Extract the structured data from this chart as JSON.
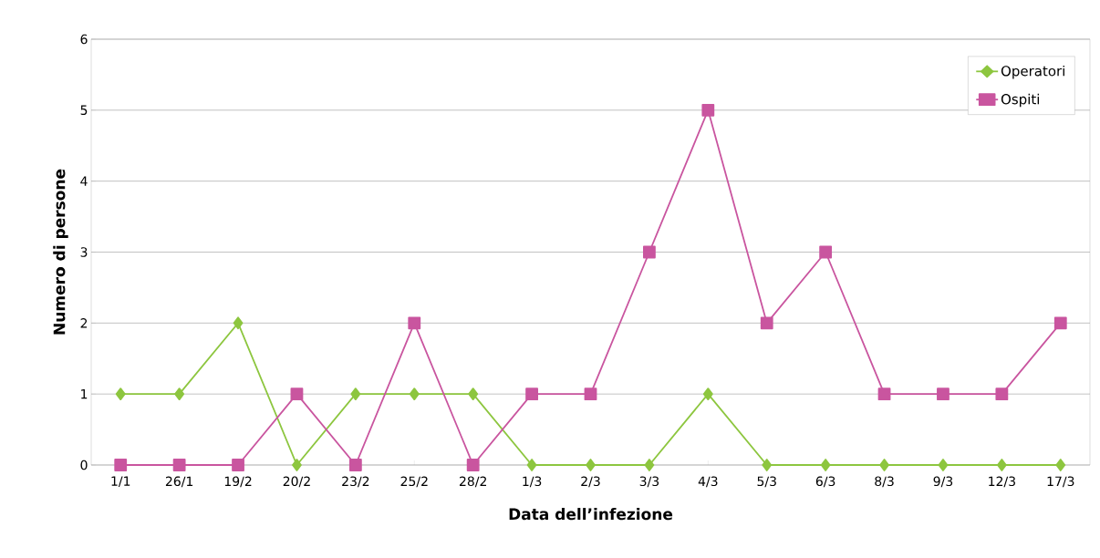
{
  "chart_data": {
    "type": "line",
    "xlabel": "Data dell’infezione",
    "ylabel": "Numero di persone",
    "categories": [
      "1/1",
      "26/1",
      "19/2",
      "20/2",
      "23/2",
      "25/2",
      "28/2",
      "1/3",
      "2/3",
      "3/3",
      "4/3",
      "5/3",
      "6/3",
      "8/3",
      "9/3",
      "12/3",
      "17/3"
    ],
    "series": [
      {
        "name": "Operatori",
        "color": "#8dc63f",
        "marker": "diamond",
        "values": [
          1,
          1,
          2,
          0,
          1,
          1,
          1,
          0,
          0,
          0,
          1,
          0,
          0,
          0,
          0,
          0,
          0
        ]
      },
      {
        "name": "Ospiti",
        "color": "#c9559f",
        "marker": "square",
        "values": [
          0,
          0,
          0,
          1,
          0,
          2,
          0,
          1,
          1,
          3,
          5,
          2,
          3,
          1,
          1,
          1,
          2
        ]
      }
    ],
    "ylim": [
      0,
      6
    ],
    "yticks": [
      0,
      1,
      2,
      3,
      4,
      5,
      6
    ],
    "grid": "y",
    "legend": "top right",
    "line_style": "solid"
  }
}
